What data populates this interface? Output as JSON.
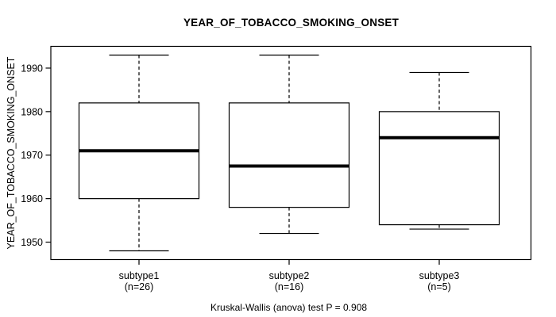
{
  "chart_data": {
    "type": "boxplot",
    "title": "YEAR_OF_TOBACCO_SMOKING_ONSET",
    "ylabel": "YEAR_OF_TOBACCO_SMOKING_ONSET",
    "xlabel": "",
    "caption": "Kruskal-Wallis (anova) test P = 0.908",
    "ylim": [
      1946,
      1995
    ],
    "yticks": [
      1950,
      1960,
      1970,
      1980,
      1990
    ],
    "grid": false,
    "legend": "none",
    "groups": [
      {
        "label": "subtype1",
        "n_label": "(n=26)",
        "min": 1948,
        "q1": 1960,
        "median": 1971,
        "q3": 1982,
        "max": 1993
      },
      {
        "label": "subtype2",
        "n_label": "(n=16)",
        "min": 1952,
        "q1": 1958,
        "median": 1967.5,
        "q3": 1982,
        "max": 1993
      },
      {
        "label": "subtype3",
        "n_label": "(n=5)",
        "min": 1953,
        "q1": 1954,
        "median": 1974,
        "q3": 1980,
        "max": 1989
      }
    ]
  }
}
